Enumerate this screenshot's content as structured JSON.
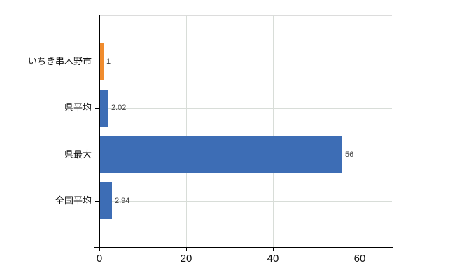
{
  "chart_data": {
    "type": "bar",
    "orientation": "horizontal",
    "title": "",
    "xlabel": "",
    "ylabel": "",
    "categories": [
      "いちき串木野市",
      "県平均",
      "県最大",
      "全国平均"
    ],
    "values": [
      1,
      2.02,
      56,
      2.94
    ],
    "value_labels": [
      "1",
      "2.02",
      "56",
      "2.94"
    ],
    "bar_colors": [
      "#F08C2E",
      "#3D6DB5",
      "#3D6DB5",
      "#3D6DB5"
    ],
    "x_ticks": [
      0,
      20,
      40,
      60
    ],
    "x_tick_labels": [
      "0",
      "20",
      "40",
      "60"
    ],
    "xlim": [
      0,
      67.4
    ],
    "grid": true,
    "legend": false
  },
  "colors": {
    "background": "#FFFFFF",
    "bar_blue": "#3D6DB5",
    "bar_orange": "#F08C2E",
    "gridline": "#D8DDD8",
    "top_border": "#DCDCDC",
    "axis": "#000000",
    "value_label_text": "#404040",
    "tick_label_text": "#111111"
  }
}
